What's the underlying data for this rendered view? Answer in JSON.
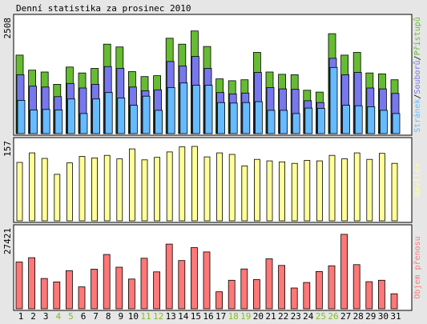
{
  "title": "Denní statistika za prosinec 2010",
  "colors": {
    "background": "#e6e6e6",
    "panel": "#ffffff",
    "frame": "#000000",
    "pristupu": "#66bb33",
    "souboru": "#7777ee",
    "stranek": "#66bbff",
    "navstev": "#ffff99",
    "objem": "#ff7777",
    "weekend_label": "#88bb22",
    "weekday_label": "#000000"
  },
  "chart_data": [
    {
      "type": "bar",
      "panel": "top",
      "ymax_label": "2508",
      "ymax": 2508,
      "legend_text": [
        "Stránek",
        "/",
        "Souborů",
        "/",
        "Přístupů"
      ],
      "series": [
        {
          "name": "Přístupů",
          "values": [
            1720,
            1390,
            1350,
            1080,
            1460,
            1330,
            1430,
            1960,
            1900,
            1360,
            1250,
            1270,
            2090,
            1960,
            2250,
            1910,
            1200,
            1160,
            1180,
            1780,
            1350,
            1300,
            1290,
            950,
            910,
            2190,
            1720,
            1780,
            1330,
            1310,
            1180
          ]
        },
        {
          "name": "Souborů",
          "values": [
            1290,
            1040,
            1020,
            810,
            1100,
            1000,
            1080,
            1470,
            1430,
            1020,
            940,
            960,
            1580,
            1480,
            1690,
            1430,
            900,
            870,
            890,
            1340,
            1010,
            980,
            970,
            720,
            680,
            1650,
            1290,
            1340,
            1000,
            980,
            880
          ]
        },
        {
          "name": "Stránek",
          "values": [
            730,
            520,
            530,
            520,
            760,
            440,
            760,
            900,
            780,
            620,
            820,
            510,
            1010,
            1110,
            1060,
            1060,
            680,
            670,
            680,
            700,
            510,
            510,
            440,
            560,
            550,
            1450,
            620,
            610,
            590,
            510,
            440
          ]
        }
      ]
    },
    {
      "type": "bar",
      "panel": "middle",
      "ymax_label": "157",
      "ymax": 157,
      "legend_text": [
        "Návštěv"
      ],
      "series": [
        {
          "name": "Návštěv",
          "values": [
            117,
            136,
            125,
            93,
            116,
            129,
            126,
            131,
            124,
            144,
            122,
            127,
            138,
            148,
            149,
            128,
            136,
            133,
            110,
            123,
            120,
            118,
            115,
            121,
            120,
            131,
            124,
            136,
            123,
            135,
            115
          ]
        }
      ]
    },
    {
      "type": "bar",
      "panel": "bottom",
      "ymax_label": "27421",
      "ymax": 27421,
      "legend_text": [
        "Objem přenosu"
      ],
      "series": [
        {
          "name": "Objem přenosu",
          "values": [
            16200,
            17700,
            10500,
            9300,
            13200,
            7600,
            13700,
            18800,
            14400,
            10300,
            17500,
            12800,
            22400,
            16700,
            21200,
            19700,
            5900,
            9900,
            13800,
            10100,
            17300,
            15000,
            7200,
            9100,
            12900,
            14900,
            25800,
            15300,
            9400,
            9900,
            5200
          ]
        }
      ]
    }
  ],
  "x_axis": {
    "days": [
      "1",
      "2",
      "3",
      "4",
      "5",
      "6",
      "7",
      "8",
      "9",
      "10",
      "11",
      "12",
      "13",
      "14",
      "15",
      "16",
      "17",
      "18",
      "19",
      "20",
      "21",
      "22",
      "23",
      "24",
      "25",
      "26",
      "27",
      "28",
      "29",
      "30",
      "31"
    ],
    "weekend_days": [
      4,
      5,
      11,
      12,
      18,
      19,
      25,
      26
    ]
  }
}
